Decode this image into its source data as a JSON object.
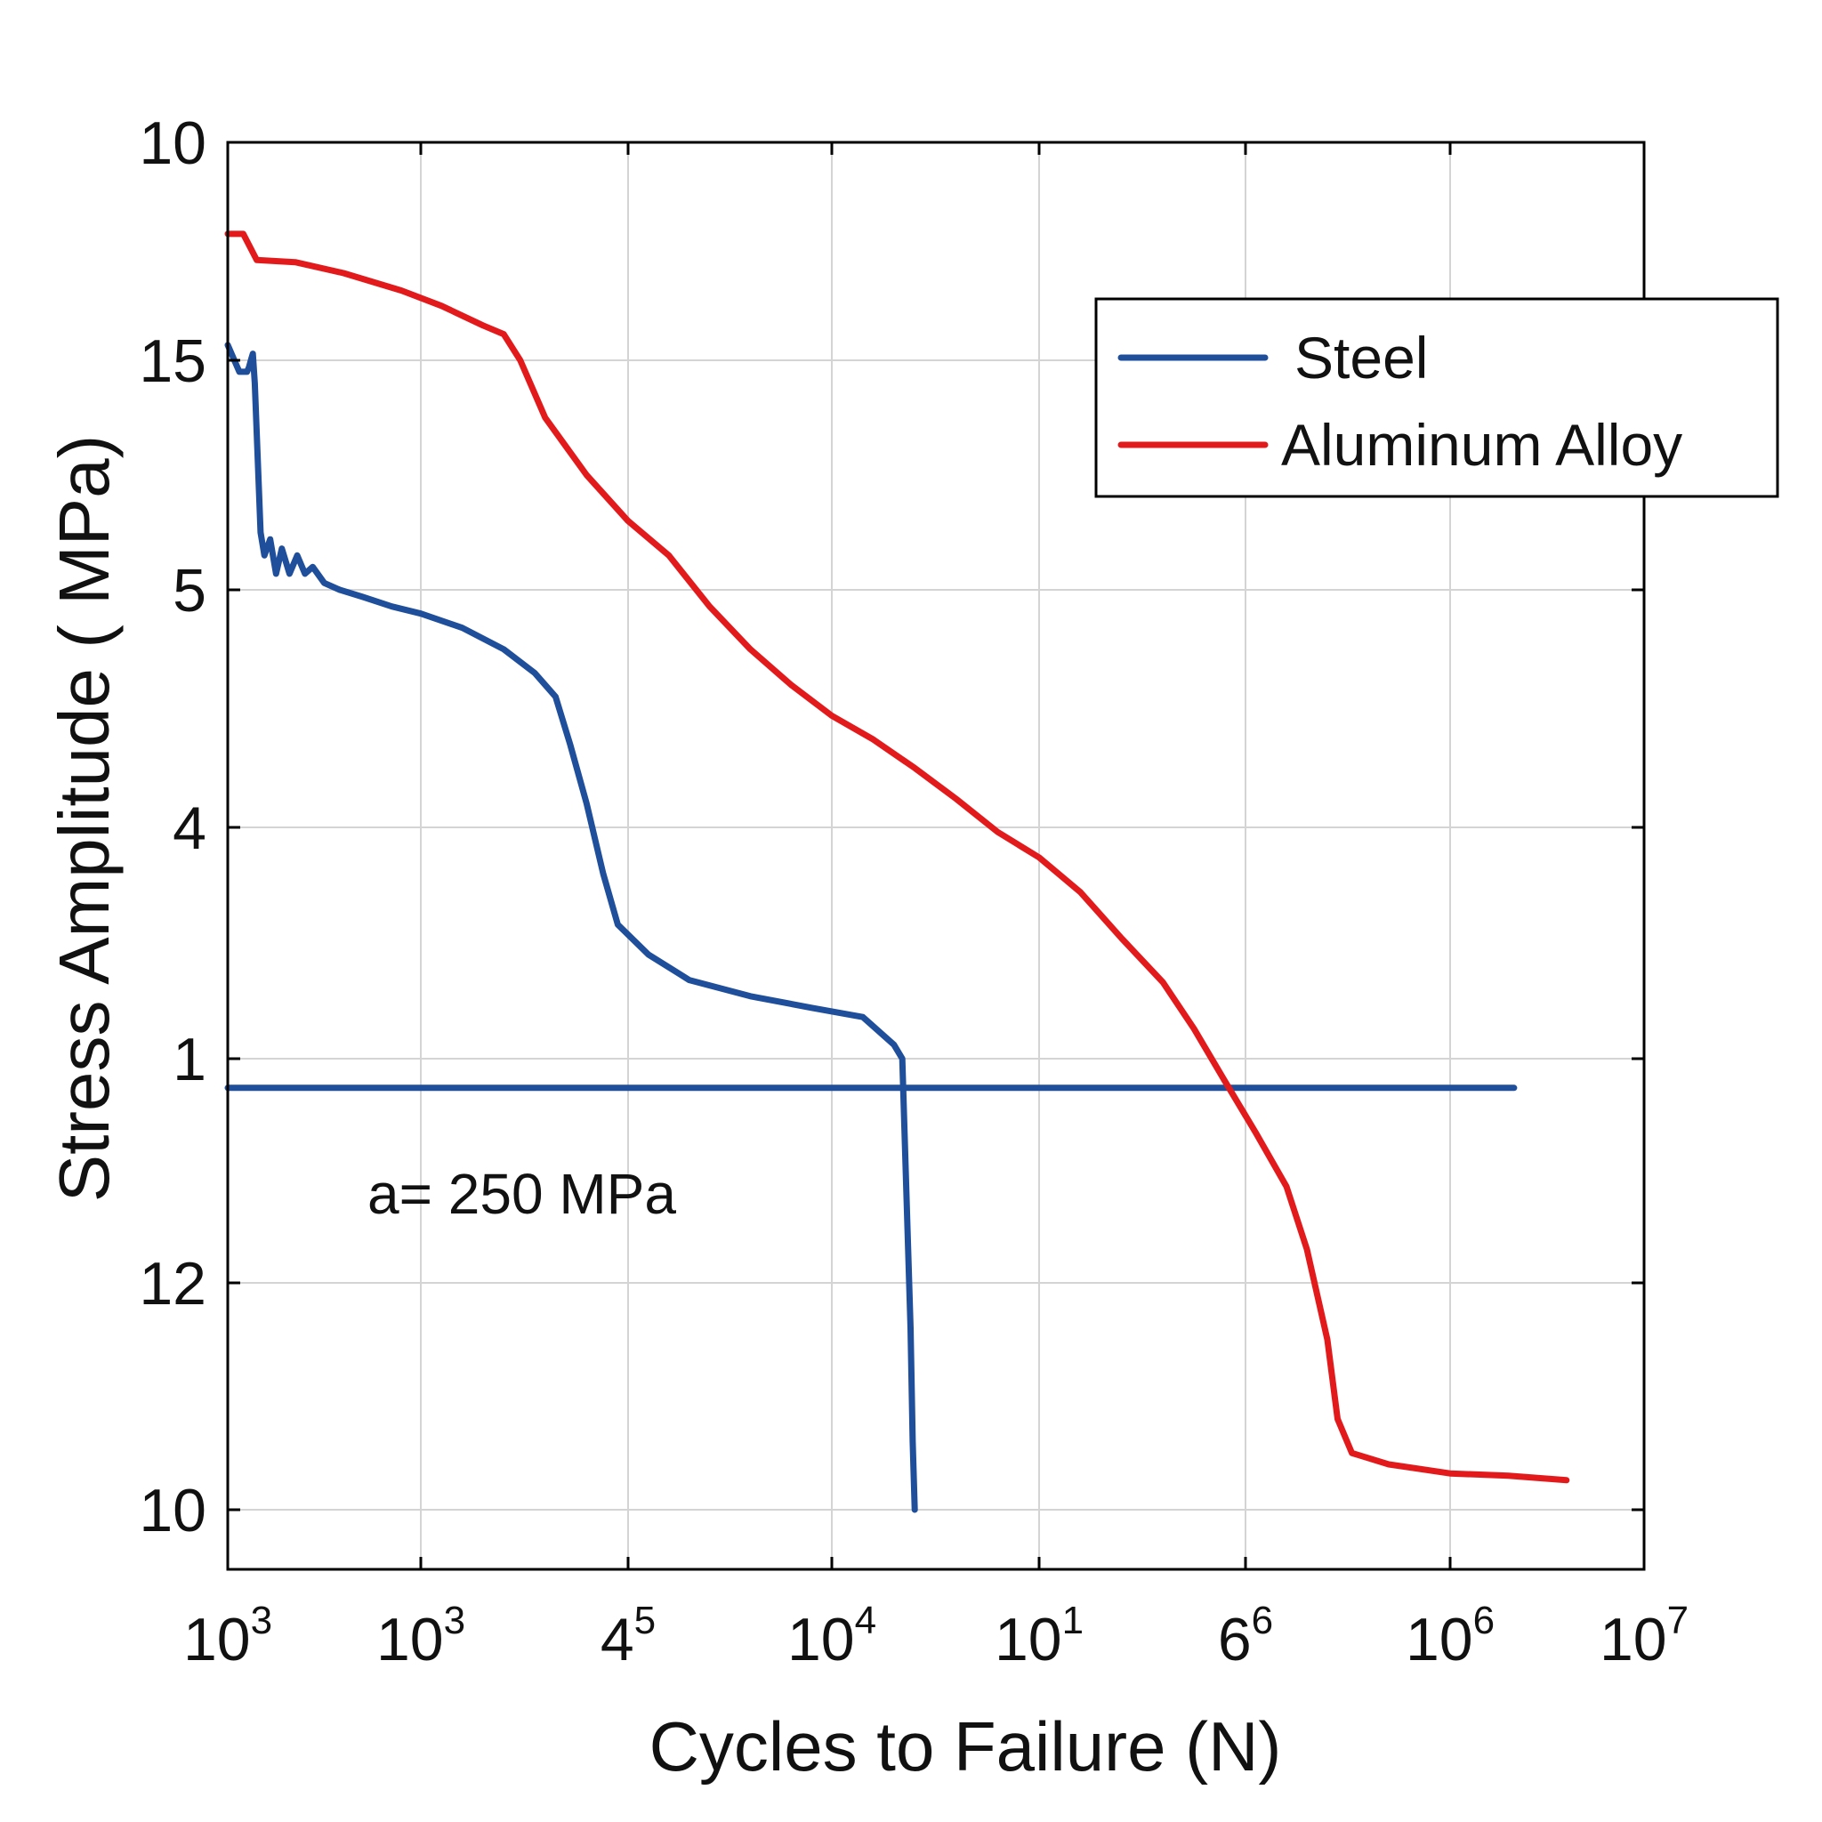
{
  "chart_data": {
    "type": "line",
    "xlabel": "Cycles to Failure (N)",
    "ylabel": "Stress Amplitude ( MPa)",
    "x_scale": "categorical-log-decades",
    "xlim": [
      0,
      7
    ],
    "ylim": [
      0,
      6
    ],
    "x_ticks": [
      {
        "pos": 0,
        "base": "10",
        "exp": "3"
      },
      {
        "pos": 1,
        "base": "10",
        "exp": "3"
      },
      {
        "pos": 2,
        "base": "4",
        "exp": "5"
      },
      {
        "pos": 3,
        "base": "10",
        "exp": "4"
      },
      {
        "pos": 4,
        "base": "10",
        "exp": "1"
      },
      {
        "pos": 5,
        "base": "6",
        "exp": "6"
      },
      {
        "pos": 6,
        "base": "10",
        "exp": "6"
      },
      {
        "pos": 7,
        "base": "10",
        "exp": "7"
      }
    ],
    "y_ticks": [
      {
        "pos": 0,
        "label": "10"
      },
      {
        "pos": 1,
        "label": "12"
      },
      {
        "pos": 2,
        "label": "1"
      },
      {
        "pos": 3,
        "label": "4"
      },
      {
        "pos": 4,
        "label": "5"
      },
      {
        "pos": 5,
        "label": "15"
      },
      {
        "pos": 6,
        "label": "10"
      }
    ],
    "grid": true,
    "legend_position": "top-right",
    "annotation": "a= 250 MPa",
    "series": [
      {
        "name": "Steel",
        "color": "#1f4e9b",
        "points": [
          [
            0.0,
            5.07
          ],
          [
            0.06,
            4.95
          ],
          [
            0.1,
            4.95
          ],
          [
            0.11,
            4.97
          ],
          [
            0.12,
            5.0
          ],
          [
            0.13,
            5.03
          ],
          [
            0.14,
            4.9
          ],
          [
            0.17,
            4.25
          ],
          [
            0.19,
            4.15
          ],
          [
            0.22,
            4.22
          ],
          [
            0.25,
            4.07
          ],
          [
            0.28,
            4.18
          ],
          [
            0.32,
            4.07
          ],
          [
            0.36,
            4.15
          ],
          [
            0.4,
            4.07
          ],
          [
            0.44,
            4.1
          ],
          [
            0.5,
            4.03
          ],
          [
            0.58,
            4.0
          ],
          [
            0.7,
            3.97
          ],
          [
            0.85,
            3.93
          ],
          [
            1.0,
            3.9
          ],
          [
            1.2,
            3.84
          ],
          [
            1.4,
            3.75
          ],
          [
            1.55,
            3.65
          ],
          [
            1.65,
            3.55
          ],
          [
            1.72,
            3.35
          ],
          [
            1.8,
            3.1
          ],
          [
            1.88,
            2.8
          ],
          [
            1.95,
            2.58
          ],
          [
            2.1,
            2.45
          ],
          [
            2.3,
            2.34
          ],
          [
            2.6,
            2.27
          ],
          [
            2.9,
            2.22
          ],
          [
            3.15,
            2.18
          ],
          [
            3.3,
            2.06
          ],
          [
            3.34,
            2.0
          ],
          [
            3.38,
            0.8
          ],
          [
            3.39,
            0.3
          ],
          [
            3.4,
            0.0
          ]
        ]
      },
      {
        "name": "Steel",
        "color": "#1f4e9b",
        "points": [
          [
            0.0,
            1.87
          ],
          [
            6.33,
            1.87
          ]
        ]
      },
      {
        "name": "Aluminum Alloy",
        "color": "#e31a1c",
        "points": [
          [
            0.0,
            5.58
          ],
          [
            0.08,
            5.58
          ],
          [
            0.15,
            5.46
          ],
          [
            0.35,
            5.45
          ],
          [
            0.6,
            5.4
          ],
          [
            0.9,
            5.32
          ],
          [
            1.1,
            5.25
          ],
          [
            1.3,
            5.16
          ],
          [
            1.4,
            5.12
          ],
          [
            1.48,
            5.0
          ],
          [
            1.6,
            4.75
          ],
          [
            1.8,
            4.5
          ],
          [
            2.0,
            4.3
          ],
          [
            2.2,
            4.15
          ],
          [
            2.4,
            3.93
          ],
          [
            2.6,
            3.75
          ],
          [
            2.8,
            3.6
          ],
          [
            3.0,
            3.47
          ],
          [
            3.2,
            3.37
          ],
          [
            3.4,
            3.25
          ],
          [
            3.6,
            3.12
          ],
          [
            3.8,
            2.98
          ],
          [
            4.0,
            2.87
          ],
          [
            4.2,
            2.72
          ],
          [
            4.4,
            2.52
          ],
          [
            4.6,
            2.33
          ],
          [
            4.75,
            2.13
          ],
          [
            4.9,
            1.9
          ],
          [
            5.05,
            1.67
          ],
          [
            5.2,
            1.43
          ],
          [
            5.3,
            1.15
          ],
          [
            5.4,
            0.75
          ],
          [
            5.45,
            0.4
          ],
          [
            5.52,
            0.25
          ],
          [
            5.7,
            0.2
          ],
          [
            6.0,
            0.16
          ],
          [
            6.3,
            0.15
          ],
          [
            6.6,
            0.13
          ]
        ]
      }
    ]
  }
}
